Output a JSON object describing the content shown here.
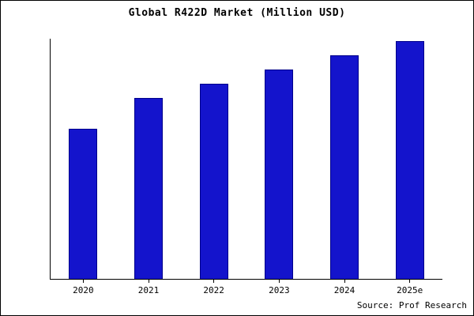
{
  "title": "Global R422D Market (Million USD)",
  "source": "Source: Prof Research",
  "colors": {
    "bar_fill": "#1414CC",
    "bar_edge": "#00008B",
    "axis": "#000000",
    "background": "#FFFFFF"
  },
  "chart_data": {
    "type": "bar",
    "title": "Global R422D Market (Million USD)",
    "categories": [
      "2020",
      "2021",
      "2022",
      "2023",
      "2024",
      "2025e"
    ],
    "values": [
      63,
      76,
      82,
      88,
      94,
      100
    ],
    "xlabel": "",
    "ylabel": "",
    "ylim": [
      0,
      101
    ],
    "grid": false,
    "legend": false,
    "annotations": [
      "Source: Prof Research"
    ]
  }
}
